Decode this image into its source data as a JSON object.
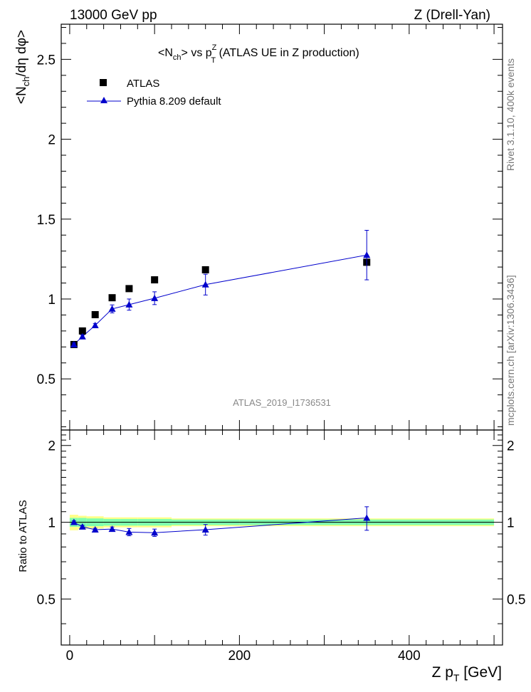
{
  "header": {
    "left": "13000 GeV pp",
    "right": "Z (Drell-Yan)"
  },
  "colors": {
    "data": "#000000",
    "mc": "#0000cc",
    "band_inner": "#7fffae",
    "band_outer": "#ffff88",
    "side_text": "#777777"
  },
  "chart_data": [
    {
      "type": "scatter",
      "title": "<N_ch> vs p_T^Z (ATLAS UE in Z production)",
      "title_parts": {
        "pre": "<N",
        "sub1": "ch",
        "mid": "> vs p",
        "sup": "Z",
        "sub2": "T",
        "post": " (ATLAS UE in Z production)"
      },
      "ylabel": "<N_ch/dη dφ>",
      "ylabel_parts": {
        "pre": "<N",
        "sub": "ch",
        "post": "/dη dφ>"
      },
      "xlim": [
        -10,
        510
      ],
      "ylim": [
        0.18,
        2.72
      ],
      "y_ticks": [
        0.5,
        1,
        1.5,
        2,
        2.5
      ],
      "y_tick_labels": [
        "0.5",
        "1",
        "1.5",
        "2",
        "2.5"
      ],
      "analysis_label": "ATLAS_2019_I1736531",
      "legend": [
        "ATLAS",
        "Pythia 8.209 default"
      ],
      "legend_position": "top-left",
      "grid": false,
      "series": [
        {
          "name": "ATLAS",
          "marker": "square",
          "x": [
            5,
            15,
            30,
            50,
            70,
            100,
            160,
            350
          ],
          "y": [
            0.715,
            0.8,
            0.902,
            1.008,
            1.065,
            1.12,
            1.183,
            1.23
          ]
        },
        {
          "name": "Pythia 8.209 default",
          "marker": "triangle",
          "x": [
            5,
            15,
            30,
            50,
            70,
            100,
            160,
            350
          ],
          "y": [
            0.715,
            0.765,
            0.835,
            0.938,
            0.965,
            1.005,
            1.09,
            1.275
          ],
          "yerr": [
            0.01,
            0.01,
            0.012,
            0.025,
            0.035,
            0.04,
            0.065,
            0.155
          ]
        }
      ]
    },
    {
      "type": "line",
      "ylabel": "Ratio to ATLAS",
      "xlabel": "Z p_T [GeV]",
      "xlabel_parts": {
        "pre": "Z p",
        "sub": "T",
        "post": " [GeV]"
      },
      "xlim": [
        -10,
        510
      ],
      "ylim": [
        0.33,
        2.3
      ],
      "x_ticks": [
        0,
        200,
        400
      ],
      "x_tick_labels": [
        "0",
        "200",
        "400"
      ],
      "y_ticks": [
        0.5,
        1,
        2
      ],
      "y_tick_labels": [
        "0.5",
        "1",
        "2"
      ],
      "reference": 1,
      "bands": {
        "x_edges": [
          0,
          10,
          20,
          40,
          60,
          80,
          120,
          200,
          500
        ],
        "inner_half_width": [
          0.04,
          0.04,
          0.035,
          0.03,
          0.03,
          0.03,
          0.025,
          0.025
        ],
        "outer_half_width": [
          0.07,
          0.06,
          0.055,
          0.045,
          0.045,
          0.045,
          0.035,
          0.035
        ]
      },
      "series": [
        {
          "name": "Pythia 8.209 default",
          "x": [
            5,
            15,
            30,
            50,
            70,
            100,
            160,
            350
          ],
          "y": [
            1.0,
            0.96,
            0.935,
            0.94,
            0.915,
            0.91,
            0.935,
            1.04
          ],
          "yerr": [
            0.012,
            0.012,
            0.012,
            0.018,
            0.03,
            0.03,
            0.045,
            0.11
          ]
        }
      ]
    }
  ],
  "side_labels": {
    "top": "Rivet 3.1.10,  400k events",
    "bottom": "mcplots.cern.ch [arXiv:1306.3436]"
  }
}
